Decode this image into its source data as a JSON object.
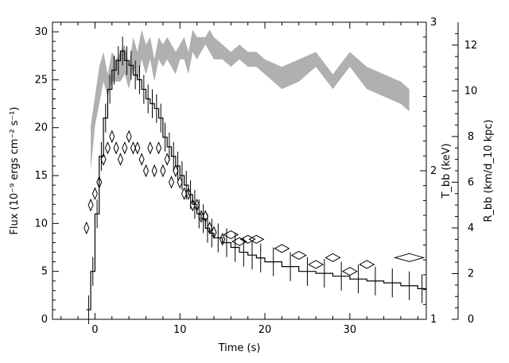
{
  "chart_data": {
    "type": "line",
    "title": "",
    "xlabel": "Time (s)",
    "ylabel_left": "Flux (10⁻⁹ ergs cm⁻² s⁻¹)",
    "ylabel_right1": "T_bb (keV)",
    "ylabel_right2": "R_bb (km/d_10 kpc)",
    "xlim": [
      -5,
      39
    ],
    "ylim_left": [
      0,
      31
    ],
    "ylim_right1": [
      1,
      3
    ],
    "ylim_right2": [
      0,
      13
    ],
    "x_ticks": [
      0,
      10,
      20,
      30
    ],
    "y_left_ticks": [
      0,
      5,
      10,
      15,
      20,
      25,
      30
    ],
    "y_right1_ticks": [
      1,
      2,
      3
    ],
    "y_right2_ticks": [
      0,
      2,
      4,
      6,
      8,
      10,
      12
    ],
    "series": [
      {
        "style": "step-with-errorbars",
        "axis": "left",
        "color": "#000000",
        "x": [
          -1,
          -0.5,
          0,
          0.5,
          1,
          1.5,
          2,
          2.5,
          3,
          3.5,
          4,
          4.5,
          5,
          5.5,
          6,
          6.5,
          7,
          7.5,
          8,
          8.5,
          9,
          9.5,
          10,
          10.5,
          11,
          11.5,
          12,
          12.5,
          13,
          13.5,
          14,
          15,
          16,
          17,
          18,
          19,
          20,
          22,
          24,
          26,
          28,
          30,
          32,
          34,
          36,
          38
        ],
        "y": [
          1,
          5,
          11,
          17,
          21,
          24,
          26,
          27,
          28,
          27,
          26.5,
          25.5,
          25,
          24,
          23,
          22.5,
          22,
          21,
          19,
          18,
          17,
          16,
          15,
          14,
          13,
          12,
          11,
          10.5,
          9.5,
          9,
          8.5,
          8,
          7.5,
          7,
          6.7,
          6.4,
          6,
          5.5,
          5,
          4.8,
          4.5,
          4.2,
          4,
          3.8,
          3.5,
          3.2
        ]
      },
      {
        "style": "diamonds",
        "axis": "right2",
        "color": "#000000",
        "x": [
          -1,
          -0.5,
          0,
          0.5,
          1,
          1.5,
          2,
          2.5,
          3,
          3.5,
          4,
          4.5,
          5,
          5.5,
          6,
          6.5,
          7,
          7.5,
          8,
          8.5,
          9,
          9.5,
          10,
          10.5,
          11,
          11.5,
          12,
          12.5,
          13,
          13.5,
          14,
          15,
          16,
          17,
          18,
          19,
          22,
          24,
          26,
          28,
          30,
          32,
          37
        ],
        "y": [
          4,
          5,
          5.5,
          6,
          7,
          7.5,
          8,
          7.5,
          7,
          7.5,
          8,
          7.5,
          7.5,
          7,
          6.5,
          7.5,
          6.5,
          7.5,
          6.5,
          7,
          6,
          6.5,
          6,
          5.5,
          5.5,
          5,
          5,
          4.5,
          4.5,
          4,
          3.8,
          3.5,
          3.7,
          3.4,
          3.5,
          3.5,
          3.1,
          2.8,
          2.4,
          2.7,
          2.1,
          2.4,
          2.7
        ]
      },
      {
        "style": "band",
        "axis": "right1",
        "color": "#b0b0b0",
        "x": [
          -0.5,
          0,
          0.5,
          1,
          1.5,
          2,
          2.5,
          3,
          3.5,
          4,
          4.5,
          5,
          5.5,
          6,
          6.5,
          7,
          7.5,
          8,
          8.5,
          9,
          9.5,
          10,
          10.5,
          11,
          11.5,
          12,
          12.5,
          13,
          13.5,
          14,
          15,
          16,
          17,
          18,
          19,
          20,
          22,
          24,
          26,
          28,
          30,
          32,
          34,
          36,
          37
        ],
        "y_low": [
          2.0,
          2.3,
          2.45,
          2.6,
          2.5,
          2.6,
          2.6,
          2.6,
          2.65,
          2.55,
          2.7,
          2.6,
          2.75,
          2.65,
          2.75,
          2.6,
          2.75,
          2.7,
          2.75,
          2.7,
          2.65,
          2.75,
          2.75,
          2.65,
          2.8,
          2.75,
          2.8,
          2.85,
          2.8,
          2.75,
          2.75,
          2.7,
          2.75,
          2.7,
          2.7,
          2.65,
          2.55,
          2.6,
          2.7,
          2.55,
          2.7,
          2.55,
          2.5,
          2.45,
          2.4
        ],
        "y_high": [
          2.3,
          2.5,
          2.7,
          2.8,
          2.65,
          2.8,
          2.75,
          2.8,
          2.85,
          2.7,
          2.9,
          2.8,
          2.95,
          2.85,
          2.9,
          2.75,
          2.9,
          2.85,
          2.9,
          2.85,
          2.8,
          2.85,
          2.9,
          2.8,
          2.95,
          2.9,
          2.9,
          2.9,
          2.95,
          2.9,
          2.85,
          2.8,
          2.85,
          2.8,
          2.8,
          2.75,
          2.7,
          2.75,
          2.8,
          2.65,
          2.8,
          2.7,
          2.65,
          2.6,
          2.55
        ]
      }
    ]
  }
}
